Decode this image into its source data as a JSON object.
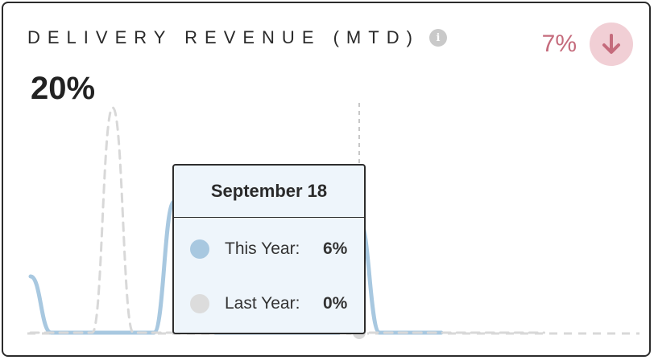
{
  "widget": {
    "title": "DELIVERY REVENUE (MTD)",
    "info_icon": "info-icon",
    "value": "20%",
    "delta": "7%",
    "delta_icon": "arrow-down-icon",
    "delta_color": "#c56b7c"
  },
  "tooltip": {
    "date": "September 18",
    "rows": [
      {
        "label": "This Year:",
        "value": "6%",
        "color": "#a8c8e0"
      },
      {
        "label": "Last Year:",
        "value": "0%",
        "color": "#dcdcdc"
      }
    ]
  },
  "chart_data": {
    "type": "line",
    "series": [
      {
        "values": [
          3,
          0,
          0,
          0,
          0,
          0,
          0,
          7,
          6,
          0,
          0,
          0,
          0,
          0,
          0,
          0,
          6,
          0,
          0,
          0,
          0
        ],
        "color": "#a8c8e0"
      },
      {
        "values": [
          0,
          0,
          0,
          0,
          12,
          0,
          0,
          0,
          0,
          0,
          0,
          0,
          0,
          0,
          0,
          0,
          0,
          0,
          0,
          0,
          0,
          0,
          0,
          0,
          0,
          0
        ],
        "color": "#d8d8d8",
        "dashed": true
      }
    ],
    "highlight_index": 16,
    "ylim": [
      0,
      12
    ]
  }
}
